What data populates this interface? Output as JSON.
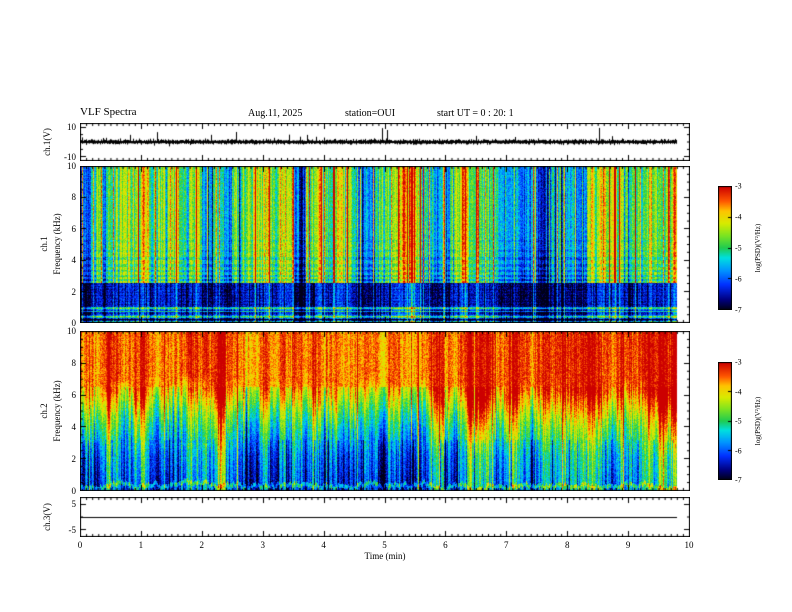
{
  "header": {
    "title": "VLF Spectra",
    "date": "Aug.11, 2025",
    "station": "station=OUI",
    "start_ut": "start UT =  0 : 20: 1"
  },
  "xaxis": {
    "label": "Time (min)",
    "ticks": [
      "0",
      "1",
      "2",
      "3",
      "4",
      "5",
      "6",
      "7",
      "8",
      "9",
      "10"
    ],
    "range_min": [
      0,
      10
    ]
  },
  "panels": {
    "ch1_wave": {
      "ylabel": "ch.1(V)",
      "yticks": [
        "10",
        "-10"
      ]
    },
    "ch1_spec": {
      "ylabel_channel": "ch.1",
      "ylabel_axis": "Frequency (kHz)",
      "yticks": [
        "10",
        "8",
        "6",
        "4",
        "2",
        "0"
      ]
    },
    "ch2_spec": {
      "ylabel_channel": "ch.2",
      "ylabel_axis": "Frequency (kHz)",
      "yticks": [
        "10",
        "8",
        "6",
        "4",
        "2",
        "0"
      ]
    },
    "ch3_wave": {
      "ylabel": "ch.3(V)",
      "yticks": [
        "5",
        "-5"
      ]
    }
  },
  "colorbars": {
    "label": "log(PSD)(V²/Hz)",
    "ticks": [
      "-3",
      "-4",
      "-5",
      "-6",
      "-7"
    ],
    "range": [
      -7,
      -3
    ]
  },
  "style": {
    "background": "#ffffff",
    "frame_color": "#000000",
    "trace_color": "#000000",
    "colormap": [
      [
        0.0,
        "#000018"
      ],
      [
        0.08,
        "#000080"
      ],
      [
        0.2,
        "#0030ff"
      ],
      [
        0.32,
        "#0098ff"
      ],
      [
        0.42,
        "#00e0e0"
      ],
      [
        0.5,
        "#20cc50"
      ],
      [
        0.6,
        "#7ce422"
      ],
      [
        0.7,
        "#d8ec00"
      ],
      [
        0.8,
        "#ffc400"
      ],
      [
        0.88,
        "#ff5800"
      ],
      [
        1.0,
        "#cc0000"
      ]
    ]
  },
  "chart_data": [
    {
      "type": "line",
      "panel": "ch.1 waveform",
      "ylabel": "ch.1(V)",
      "ylim": [
        -12.5,
        12.5
      ],
      "yticks": [
        10,
        -10
      ],
      "xlim_min": [
        0,
        10
      ],
      "data_end_min": 9.8,
      "description": "Dense noisy voltage trace centered on 0 V with frequent impulsive spikes, many reaching about +10 V and a few near -10 V"
    },
    {
      "type": "heatmap",
      "panel": "ch.1 spectrogram",
      "xlabel": "Time (min)",
      "ylabel": "Frequency (kHz)",
      "xlim": [
        0,
        10
      ],
      "ylim": [
        0,
        10
      ],
      "zlabel": "log(PSD)(V²/Hz)",
      "zlim": [
        -7,
        -3
      ],
      "colormap": "jet (red = -3 high power, dark blue/black = -7 low power)",
      "data_end_min": 9.8,
      "features": [
        "broadband green/yellow background near -5 over 0-10 kHz",
        "many narrow red vertical impulsive streaks spanning the full 0-10 kHz band",
        "dark blue low-power band between about 1 and 2.5 kHz",
        "thin horizontal interference lines between roughly 2.7 and 5 kHz",
        "alternating green/dark horizontal stripes below 1 kHz"
      ]
    },
    {
      "type": "heatmap",
      "panel": "ch.2 spectrogram",
      "xlabel": "Time (min)",
      "ylabel": "Frequency (kHz)",
      "xlim": [
        0,
        10
      ],
      "ylim": [
        0,
        10
      ],
      "zlabel": "log(PSD)(V²/Hz)",
      "zlim": [
        -7,
        -3
      ],
      "colormap": "jet (red = -3 high power, dark blue/black = -7 low power)",
      "data_end_min": 9.8,
      "features": [
        "intense red band near -3 above roughly 6 kHz",
        "yellow-green transition between about 4 and 6.5 kHz with ragged column-to-column boundary",
        "cyan/blue region near -6 below about 3 kHz with darker blue vertical streaks",
        "occasional red vertical streaks extending down into the low-frequency region",
        "thin brighter line very close to 0 kHz"
      ]
    },
    {
      "type": "line",
      "panel": "ch.3 waveform",
      "ylabel": "ch.3(V)",
      "ylim": [
        -7.5,
        7.5
      ],
      "yticks": [
        5,
        -5
      ],
      "xlim_min": [
        0,
        10
      ],
      "data_end_min": 9.8,
      "description": "Constant flat line at 0 V across the whole record"
    }
  ]
}
